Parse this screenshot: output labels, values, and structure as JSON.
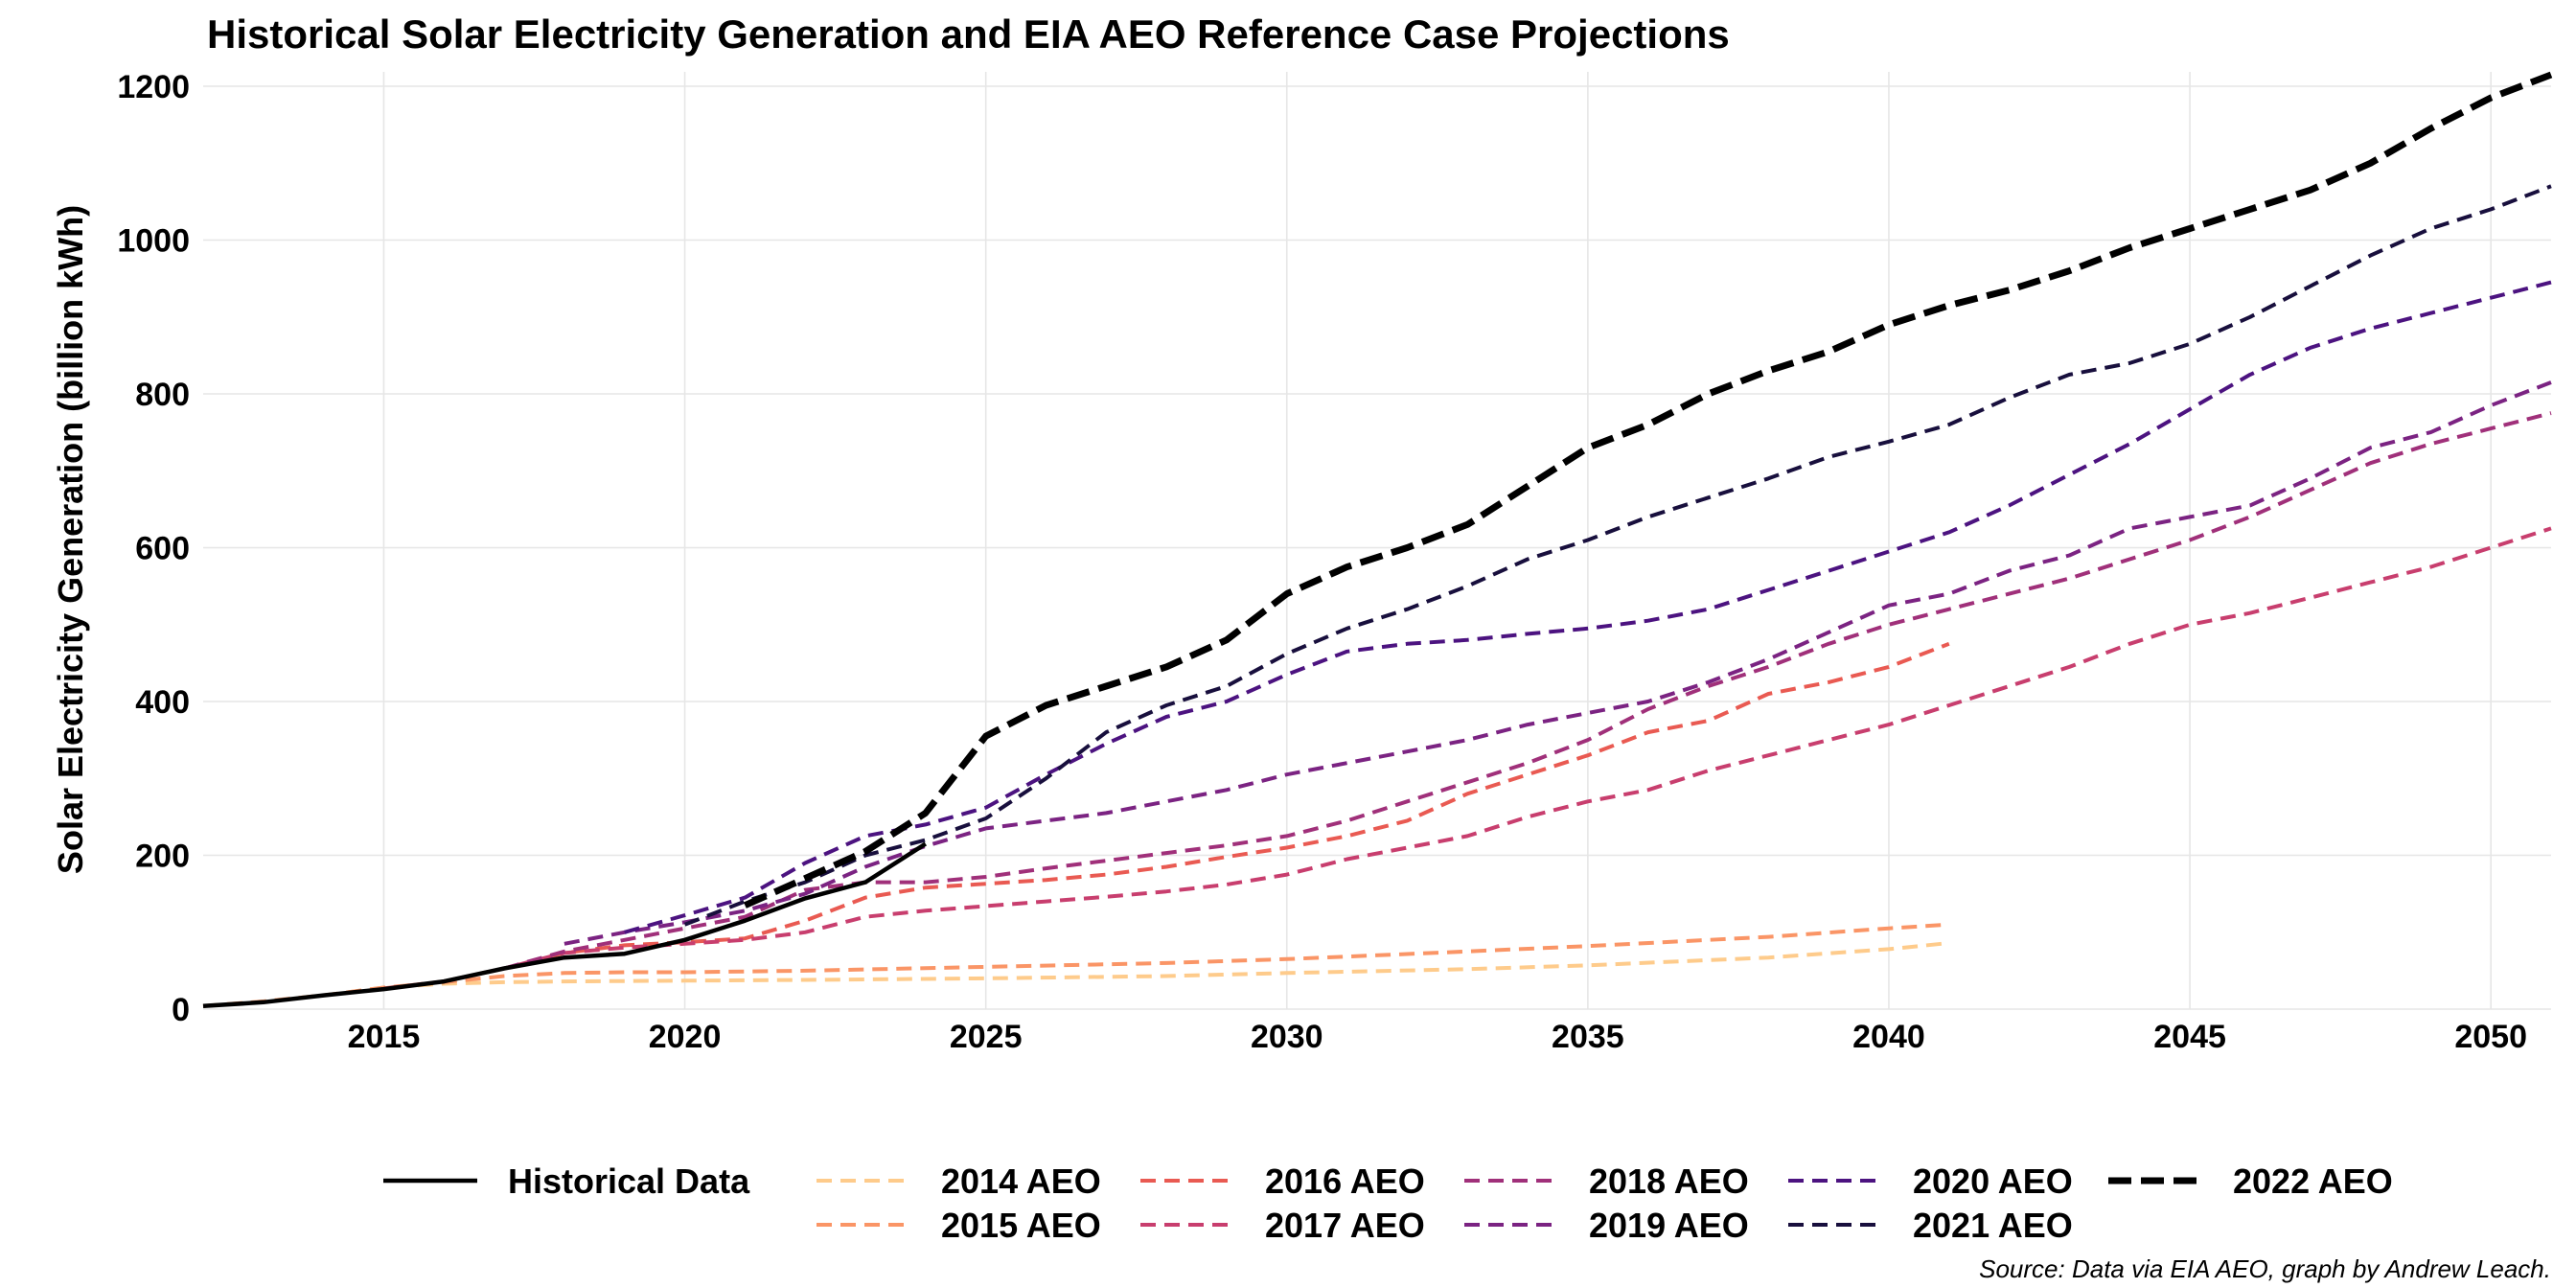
{
  "chart_data": {
    "type": "line",
    "title": "Historical Solar Electricity Generation and EIA AEO Reference Case Projections",
    "ylabel": "Solar Electricity Generation (billion kWh)",
    "xlabel": "",
    "caption": "Source: Data via EIA AEO, graph by Andrew Leach.",
    "xlim": [
      2012,
      2051
    ],
    "ylim": [
      0,
      1220
    ],
    "x_ticks": [
      2015,
      2020,
      2025,
      2030,
      2035,
      2040,
      2045,
      2050
    ],
    "y_ticks": [
      0,
      200,
      400,
      600,
      800,
      1000,
      1200
    ],
    "grid": true,
    "legend_position": "bottom",
    "series": [
      {
        "name": "Historical Data",
        "color": "#000000",
        "style": "solid",
        "width": 4.5,
        "x": [
          2012,
          2013,
          2014,
          2015,
          2016,
          2017,
          2018,
          2019,
          2020,
          2021,
          2022,
          2023,
          2024
        ],
        "y": [
          4,
          9,
          18,
          26,
          36,
          53,
          67,
          72,
          90,
          115,
          144,
          165,
          215
        ]
      },
      {
        "name": "2014 AEO",
        "color": "#FECB8B",
        "style": "dashed",
        "width": 4,
        "x": [
          2012,
          2013,
          2014,
          2015,
          2016,
          2017,
          2018,
          2020,
          2022,
          2025,
          2028,
          2030,
          2033,
          2035,
          2038,
          2040,
          2041
        ],
        "y": [
          4,
          10,
          18,
          28,
          33,
          35,
          36,
          37,
          38,
          40,
          43,
          47,
          52,
          57,
          67,
          78,
          86
        ]
      },
      {
        "name": "2015 AEO",
        "color": "#FA9566",
        "style": "dashed",
        "width": 4,
        "x": [
          2012,
          2013,
          2014,
          2015,
          2016,
          2017,
          2018,
          2019,
          2020,
          2022,
          2025,
          2028,
          2030,
          2033,
          2035,
          2038,
          2040,
          2041
        ],
        "y": [
          4,
          10,
          18,
          28,
          35,
          43,
          47,
          48,
          48,
          50,
          55,
          60,
          65,
          75,
          82,
          94,
          105,
          110
        ]
      },
      {
        "name": "2016 AEO",
        "color": "#E95A52",
        "style": "dashed",
        "width": 4,
        "x": [
          2015,
          2016,
          2017,
          2018,
          2019,
          2020,
          2021,
          2022,
          2023,
          2024,
          2025,
          2026,
          2027,
          2028,
          2029,
          2030,
          2031,
          2032,
          2033,
          2034,
          2035,
          2036,
          2037,
          2038,
          2039,
          2040,
          2041
        ],
        "y": [
          27,
          36,
          53,
          73,
          83,
          87,
          92,
          115,
          145,
          158,
          163,
          168,
          175,
          185,
          198,
          210,
          225,
          245,
          280,
          305,
          330,
          360,
          375,
          410,
          425,
          445,
          475
        ]
      },
      {
        "name": "2017 AEO",
        "color": "#C83E6E",
        "style": "dashed",
        "width": 4,
        "x": [
          2016,
          2017,
          2018,
          2019,
          2020,
          2021,
          2022,
          2023,
          2024,
          2025,
          2026,
          2027,
          2028,
          2029,
          2030,
          2031,
          2032,
          2033,
          2034,
          2035,
          2036,
          2037,
          2038,
          2039,
          2040,
          2041,
          2042,
          2043,
          2044,
          2045,
          2046,
          2047,
          2048,
          2049,
          2050,
          2051
        ],
        "y": [
          36,
          53,
          73,
          80,
          85,
          90,
          100,
          120,
          128,
          134,
          140,
          146,
          153,
          162,
          175,
          195,
          210,
          225,
          250,
          270,
          285,
          310,
          330,
          350,
          370,
          395,
          420,
          445,
          475,
          500,
          515,
          535,
          555,
          575,
          600,
          625
        ]
      },
      {
        "name": "2018 AEO",
        "color": "#A0307A",
        "style": "dashed",
        "width": 4,
        "x": [
          2017,
          2018,
          2019,
          2020,
          2021,
          2022,
          2023,
          2024,
          2025,
          2026,
          2027,
          2028,
          2029,
          2030,
          2031,
          2032,
          2033,
          2034,
          2035,
          2036,
          2037,
          2038,
          2039,
          2040,
          2041,
          2042,
          2043,
          2044,
          2045,
          2046,
          2047,
          2048,
          2049,
          2050,
          2051
        ],
        "y": [
          53,
          75,
          90,
          105,
          120,
          155,
          165,
          165,
          172,
          183,
          193,
          203,
          213,
          225,
          245,
          270,
          295,
          320,
          350,
          390,
          420,
          445,
          475,
          500,
          520,
          540,
          560,
          585,
          610,
          640,
          675,
          710,
          735,
          755,
          775
        ]
      },
      {
        "name": "2019 AEO",
        "color": "#7B2382",
        "style": "dashed",
        "width": 4,
        "x": [
          2018,
          2019,
          2020,
          2021,
          2022,
          2023,
          2024,
          2025,
          2026,
          2027,
          2028,
          2029,
          2030,
          2031,
          2032,
          2033,
          2034,
          2035,
          2036,
          2037,
          2038,
          2039,
          2040,
          2041,
          2042,
          2043,
          2044,
          2045,
          2046,
          2047,
          2048,
          2049,
          2050,
          2051
        ],
        "y": [
          85,
          100,
          113,
          128,
          150,
          185,
          212,
          235,
          245,
          255,
          270,
          285,
          305,
          320,
          335,
          350,
          370,
          385,
          400,
          425,
          455,
          490,
          525,
          540,
          570,
          590,
          625,
          640,
          655,
          690,
          730,
          750,
          785,
          815
        ]
      },
      {
        "name": "2020 AEO",
        "color": "#4C1380",
        "style": "dashed",
        "width": 4,
        "x": [
          2019,
          2020,
          2021,
          2022,
          2023,
          2024,
          2025,
          2026,
          2027,
          2028,
          2029,
          2030,
          2031,
          2032,
          2033,
          2034,
          2035,
          2036,
          2037,
          2038,
          2039,
          2040,
          2041,
          2042,
          2043,
          2044,
          2045,
          2046,
          2047,
          2048,
          2049,
          2050,
          2051
        ],
        "y": [
          100,
          122,
          145,
          190,
          225,
          240,
          262,
          305,
          345,
          380,
          400,
          435,
          465,
          475,
          480,
          488,
          495,
          505,
          520,
          545,
          570,
          595,
          620,
          655,
          695,
          735,
          780,
          825,
          860,
          885,
          905,
          925,
          945
        ]
      },
      {
        "name": "2021 AEO",
        "color": "#180F3D",
        "style": "dashed",
        "width": 4,
        "x": [
          2020,
          2021,
          2022,
          2023,
          2024,
          2025,
          2026,
          2027,
          2028,
          2029,
          2030,
          2031,
          2032,
          2033,
          2034,
          2035,
          2036,
          2037,
          2038,
          2039,
          2040,
          2041,
          2042,
          2043,
          2044,
          2045,
          2046,
          2047,
          2048,
          2049,
          2050,
          2051
        ],
        "y": [
          110,
          140,
          165,
          200,
          220,
          248,
          300,
          360,
          395,
          420,
          462,
          495,
          520,
          550,
          585,
          610,
          640,
          665,
          690,
          718,
          738,
          760,
          795,
          825,
          840,
          865,
          900,
          940,
          980,
          1015,
          1040,
          1070
        ]
      },
      {
        "name": "2022 AEO",
        "color": "#000000",
        "style": "dashed-bold",
        "width": 7,
        "x": [
          2021,
          2022,
          2023,
          2024,
          2025,
          2026,
          2027,
          2028,
          2029,
          2030,
          2031,
          2032,
          2033,
          2034,
          2035,
          2036,
          2037,
          2038,
          2039,
          2040,
          2041,
          2042,
          2043,
          2044,
          2045,
          2046,
          2047,
          2048,
          2049,
          2050,
          2051
        ],
        "y": [
          135,
          170,
          205,
          255,
          355,
          395,
          420,
          445,
          480,
          540,
          575,
          600,
          630,
          680,
          730,
          760,
          800,
          830,
          855,
          890,
          915,
          935,
          960,
          990,
          1015,
          1040,
          1065,
          1100,
          1145,
          1185,
          1215
        ]
      }
    ],
    "legend_layout": [
      [
        "Historical Data"
      ],
      [
        "2014 AEO",
        "2015 AEO"
      ],
      [
        "2016 AEO",
        "2017 AEO"
      ],
      [
        "2018 AEO",
        "2019 AEO"
      ],
      [
        "2020 AEO",
        "2021 AEO"
      ],
      [
        "2022 AEO"
      ]
    ]
  }
}
